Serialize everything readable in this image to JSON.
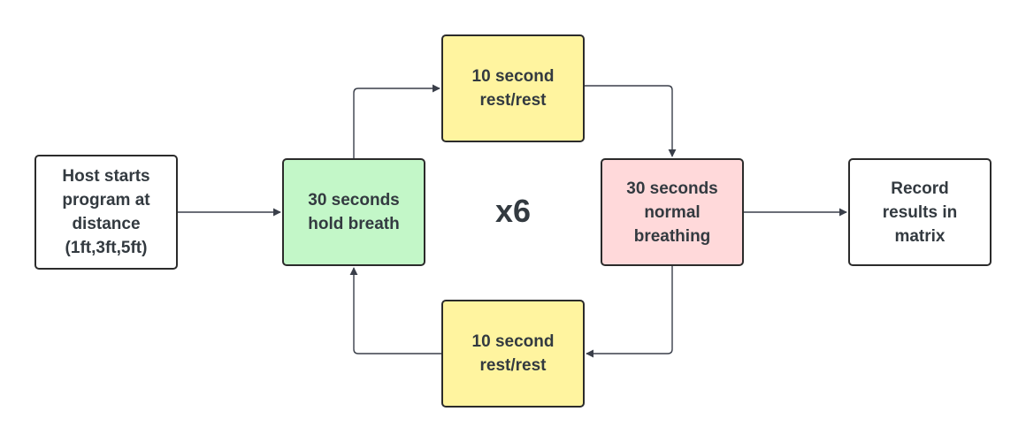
{
  "diagram": {
    "nodes": {
      "host": {
        "label": "Host starts\nprogram at\ndistance\n(1ft,3ft,5ft)",
        "fill": "#ffffff"
      },
      "hold": {
        "label": "30 seconds\nhold breath",
        "fill": "#c3f7c8"
      },
      "rest_top": {
        "label": "10 second\nrest/rest",
        "fill": "#fff49f"
      },
      "normal": {
        "label": "30 seconds\nnormal\nbreathing",
        "fill": "#ffd9da"
      },
      "record": {
        "label": "Record\nresults in\nmatrix",
        "fill": "#ffffff"
      },
      "rest_bottom": {
        "label": "10 second\nrest/rest",
        "fill": "#fff49f"
      }
    },
    "repeat_label": "x6",
    "colors": {
      "stroke": "#2b2b2b",
      "text": "#333a40",
      "connector": "#3a3f4a"
    }
  }
}
